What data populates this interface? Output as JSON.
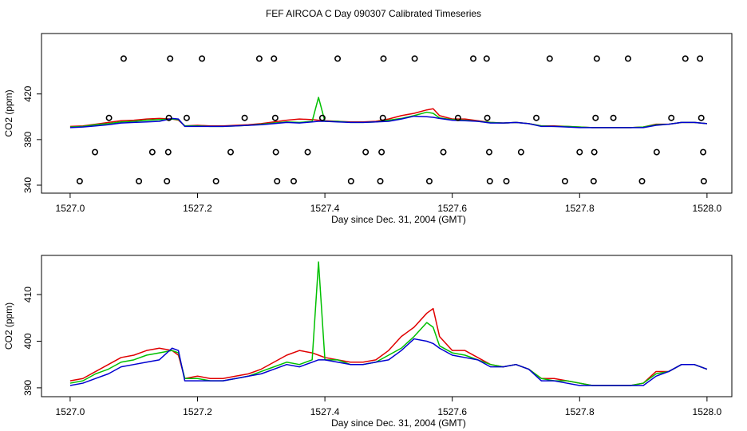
{
  "chart_data": [
    {
      "type": "line",
      "title": "FEF AIRCOA C  Day 090307  Calibrated Timeseries",
      "xlabel": "Day since Dec. 31, 2004 (GMT)",
      "ylabel": "CO2 (ppm)",
      "xlim": [
        1526.955,
        1528.039
      ],
      "ylim": [
        333,
        473
      ],
      "xticks": [
        {
          "value": 1527,
          "label": "1527.0"
        },
        1527.2,
        1527.4,
        1527.6,
        1527.8,
        {
          "value": 1528,
          "label": "1528.0"
        }
      ],
      "yticks": [
        340,
        380,
        420
      ],
      "x": [
        1527.0,
        1527.02,
        1527.04,
        1527.06,
        1527.08,
        1527.1,
        1527.12,
        1527.14,
        1527.16,
        1527.17,
        1527.18,
        1527.2,
        1527.22,
        1527.24,
        1527.26,
        1527.28,
        1527.3,
        1527.32,
        1527.34,
        1527.36,
        1527.38,
        1527.39,
        1527.4,
        1527.42,
        1527.44,
        1527.46,
        1527.48,
        1527.5,
        1527.52,
        1527.54,
        1527.56,
        1527.57,
        1527.58,
        1527.6,
        1527.62,
        1527.64,
        1527.66,
        1527.68,
        1527.7,
        1527.72,
        1527.74,
        1527.76,
        1527.78,
        1527.8,
        1527.82,
        1527.84,
        1527.86,
        1527.88,
        1527.9,
        1527.92,
        1527.94,
        1527.96,
        1527.98,
        1528.0
      ],
      "series": [
        {
          "color": "#e00000",
          "mode": "line",
          "values": [
            391.5,
            392,
            393.5,
            395,
            396.5,
            397,
            398,
            398.5,
            398,
            397,
            392,
            392.5,
            392,
            392,
            392.5,
            393,
            394,
            395.5,
            397,
            398,
            397.5,
            397,
            396.5,
            396,
            395.5,
            395.5,
            396,
            398,
            401,
            403,
            406,
            407,
            401,
            398,
            398,
            396.5,
            395,
            394.5,
            395,
            394,
            392,
            392,
            391.5,
            391,
            390.5,
            390.5,
            390.5,
            390.5,
            391,
            393.5,
            393.5,
            395,
            395,
            394
          ]
        },
        {
          "color": "#00c000",
          "mode": "line",
          "values": [
            391,
            391.5,
            393,
            394,
            395.5,
            396,
            397,
            397.5,
            398,
            397.5,
            392,
            392,
            391.5,
            391.5,
            392,
            392.5,
            393.5,
            394.5,
            395.5,
            395,
            396,
            417,
            396,
            396,
            395,
            395,
            395.5,
            397,
            398.5,
            401,
            404,
            403,
            399,
            397.5,
            397,
            396,
            395,
            394.5,
            395,
            394,
            392,
            391.5,
            391.5,
            391,
            390.5,
            390.5,
            390.5,
            390.5,
            391,
            393,
            393.5,
            395,
            395,
            394
          ]
        },
        {
          "color": "#0000d0",
          "mode": "line",
          "values": [
            390.5,
            391,
            392,
            393,
            394.5,
            395,
            395.5,
            396,
            398.5,
            398,
            391.5,
            391.5,
            391.5,
            391.5,
            392,
            392.5,
            393,
            394,
            395,
            394.5,
            395.5,
            396,
            396,
            395.5,
            395,
            395,
            395.5,
            396,
            398,
            400.5,
            400,
            399.5,
            398.5,
            397,
            396.5,
            396,
            394.5,
            394.5,
            395,
            394,
            391.5,
            391.5,
            391,
            390.5,
            390.5,
            390.5,
            390.5,
            390.5,
            390.5,
            392.5,
            393.5,
            395,
            395,
            394
          ]
        },
        {
          "color": "#000000",
          "mode": "points",
          "x": [
            1527.084,
            1527.157,
            1527.207,
            1527.297,
            1527.32,
            1527.42,
            1527.492,
            1527.541,
            1527.633,
            1527.654,
            1527.753,
            1527.827,
            1527.876,
            1527.966,
            1527.989,
            1527.061,
            1527.155,
            1527.183,
            1527.274,
            1527.322,
            1527.396,
            1527.491,
            1527.609,
            1527.655,
            1527.732,
            1527.825,
            1527.853,
            1527.944,
            1527.991,
            1527.039,
            1527.129,
            1527.154,
            1527.252,
            1527.323,
            1527.373,
            1527.464,
            1527.489,
            1527.586,
            1527.658,
            1527.708,
            1527.8,
            1527.823,
            1527.921,
            1527.994,
            1527.015,
            1527.108,
            1527.152,
            1527.229,
            1527.325,
            1527.351,
            1527.441,
            1527.487,
            1527.564,
            1527.659,
            1527.685,
            1527.777,
            1527.822,
            1527.898,
            1527.995
          ],
          "values": [
            451,
            451,
            451,
            451,
            451,
            451,
            451,
            451,
            451,
            451,
            451,
            451,
            451,
            451,
            451,
            399,
            399,
            399,
            399,
            399,
            399,
            399,
            399,
            399,
            399,
            399,
            399,
            399,
            399,
            369,
            369,
            369,
            369,
            369,
            369,
            369,
            369,
            369,
            369,
            369,
            369,
            369,
            369,
            369,
            343.5,
            343.5,
            343.5,
            343.5,
            343.5,
            343.5,
            343.5,
            343.5,
            343.5,
            343.5,
            343.5,
            343.5,
            343.5,
            343.5,
            343.5
          ]
        }
      ]
    },
    {
      "type": "line",
      "xlabel": "Day since Dec. 31, 2004 (GMT)",
      "ylabel": "CO2 (ppm)",
      "xlim": [
        1526.955,
        1528.039
      ],
      "ylim": [
        388.1,
        418.4
      ],
      "xticks": [
        {
          "value": 1527,
          "label": "1527.0"
        },
        1527.2,
        1527.4,
        1527.6,
        1527.8,
        {
          "value": 1528,
          "label": "1528.0"
        }
      ],
      "yticks": [
        390,
        400,
        410
      ],
      "x": [
        1527.0,
        1527.02,
        1527.04,
        1527.06,
        1527.08,
        1527.1,
        1527.12,
        1527.14,
        1527.16,
        1527.17,
        1527.18,
        1527.2,
        1527.22,
        1527.24,
        1527.26,
        1527.28,
        1527.3,
        1527.32,
        1527.34,
        1527.36,
        1527.38,
        1527.39,
        1527.4,
        1527.42,
        1527.44,
        1527.46,
        1527.48,
        1527.5,
        1527.52,
        1527.54,
        1527.56,
        1527.57,
        1527.58,
        1527.6,
        1527.62,
        1527.64,
        1527.66,
        1527.68,
        1527.7,
        1527.72,
        1527.74,
        1527.76,
        1527.78,
        1527.8,
        1527.82,
        1527.84,
        1527.86,
        1527.88,
        1527.9,
        1527.92,
        1527.94,
        1527.96,
        1527.98,
        1528.0
      ],
      "series": [
        {
          "color": "#e00000",
          "mode": "line",
          "values": [
            391.5,
            392,
            393.5,
            395,
            396.5,
            397,
            398,
            398.5,
            398,
            397,
            392,
            392.5,
            392,
            392,
            392.5,
            393,
            394,
            395.5,
            397,
            398,
            397.5,
            397,
            396.5,
            396,
            395.5,
            395.5,
            396,
            398,
            401,
            403,
            406,
            407,
            401,
            398,
            398,
            396.5,
            395,
            394.5,
            395,
            394,
            392,
            392,
            391.5,
            391,
            390.5,
            390.5,
            390.5,
            390.5,
            391,
            393.5,
            393.5,
            395,
            395,
            394
          ]
        },
        {
          "color": "#00c000",
          "mode": "line",
          "values": [
            391,
            391.5,
            393,
            394,
            395.5,
            396,
            397,
            397.5,
            398,
            397.5,
            392,
            392,
            391.5,
            391.5,
            392,
            392.5,
            393.5,
            394.5,
            395.5,
            395,
            396,
            417,
            396,
            396,
            395,
            395,
            395.5,
            397,
            398.5,
            401,
            404,
            403,
            399,
            397.5,
            397,
            396,
            395,
            394.5,
            395,
            394,
            392,
            391.5,
            391.5,
            391,
            390.5,
            390.5,
            390.5,
            390.5,
            391,
            393,
            393.5,
            395,
            395,
            394
          ]
        },
        {
          "color": "#0000d0",
          "mode": "line",
          "values": [
            390.5,
            391,
            392,
            393,
            394.5,
            395,
            395.5,
            396,
            398.5,
            398,
            391.5,
            391.5,
            391.5,
            391.5,
            392,
            392.5,
            393,
            394,
            395,
            394.5,
            395.5,
            396,
            396,
            395.5,
            395,
            395,
            395.5,
            396,
            398,
            400.5,
            400,
            399.5,
            398.5,
            397,
            396.5,
            396,
            394.5,
            394.5,
            395,
            394,
            391.5,
            391.5,
            391,
            390.5,
            390.5,
            390.5,
            390.5,
            390.5,
            390.5,
            392.5,
            393.5,
            395,
            395,
            394
          ]
        }
      ]
    }
  ]
}
